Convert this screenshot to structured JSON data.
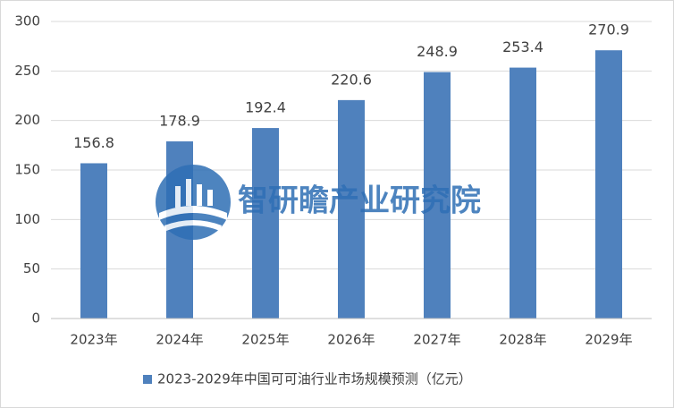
{
  "chart_data": {
    "type": "bar",
    "categories": [
      "2023年",
      "2024年",
      "2025年",
      "2026年",
      "2027年",
      "2028年",
      "2029年"
    ],
    "series": [
      {
        "name": "2023-2029年中国可可油行业市场规模预测（亿元）",
        "color": "#4f81bd",
        "values": [
          156.8,
          178.9,
          192.4,
          220.6,
          248.9,
          253.4,
          270.9
        ]
      }
    ],
    "ylim": [
      0,
      300
    ],
    "yticks": [
      0,
      50,
      100,
      150,
      200,
      250,
      300
    ],
    "grid": true,
    "legend": "bottom",
    "watermark": "智研瞻产业研究院"
  }
}
